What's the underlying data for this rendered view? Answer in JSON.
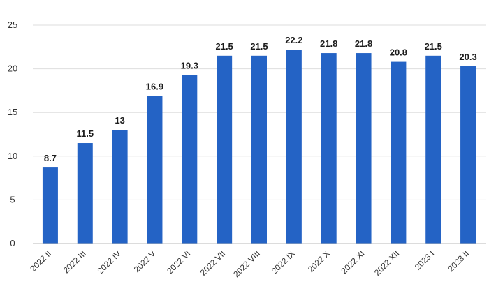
{
  "chart_data": {
    "type": "bar",
    "categories": [
      "2022 II",
      "2022 III",
      "2022 IV",
      "2022 V",
      "2022 VI",
      "2022 VII",
      "2022 VIII",
      "2022 IX",
      "2022 X",
      "2022 XI",
      "2022 XII",
      "2023 I",
      "2023 II"
    ],
    "values": [
      8.7,
      11.5,
      13,
      16.9,
      19.3,
      21.5,
      21.5,
      22.2,
      21.8,
      21.8,
      20.8,
      21.5,
      20.3
    ],
    "value_labels": [
      "8.7",
      "11.5",
      "13",
      "16.9",
      "19.3",
      "21.5",
      "21.5",
      "22.2",
      "21.8",
      "21.8",
      "20.8",
      "21.5",
      "20.3"
    ],
    "y_ticks": [
      "0",
      "5",
      "10",
      "15",
      "20",
      "25"
    ],
    "ylim": [
      0,
      25
    ],
    "title": "",
    "xlabel": "",
    "ylabel": "",
    "grid": true,
    "legend": "none",
    "colors": {
      "bar": "#2463c5",
      "grid": "#dedede",
      "axis": "#b9b9b9",
      "label": "#1c1c1c"
    }
  }
}
